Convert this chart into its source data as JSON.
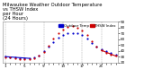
{
  "title": "Milwaukee Weather Outdoor Temperature\nvs THSW Index\nper Hour\n(24 Hours)",
  "background_color": "#ffffff",
  "grid_color": "#aaaaaa",
  "hours": [
    0,
    1,
    2,
    3,
    4,
    5,
    6,
    7,
    8,
    9,
    10,
    11,
    12,
    13,
    14,
    15,
    16,
    17,
    18,
    19,
    20,
    21,
    22,
    23
  ],
  "temp_values": [
    30,
    29,
    28,
    27,
    27,
    27,
    28,
    32,
    39,
    47,
    55,
    62,
    67,
    70,
    71,
    70,
    67,
    61,
    54,
    47,
    42,
    39,
    36,
    34
  ],
  "thsw_values": [
    29,
    28,
    27,
    26,
    26,
    26,
    27,
    31,
    38,
    49,
    61,
    70,
    77,
    81,
    83,
    80,
    75,
    67,
    57,
    48,
    41,
    37,
    33,
    31
  ],
  "ylim": [
    20,
    90
  ],
  "xlim": [
    -0.5,
    23.5
  ],
  "dot_size": 2.5,
  "temp_color": "#0000cc",
  "thsw_color": "#cc0000",
  "legend_label_temp": "Outdoor Temp",
  "legend_label_thsw": "THSW Index",
  "title_fontsize": 3.8,
  "tick_fontsize": 3.0,
  "yticks": [
    20,
    30,
    40,
    50,
    60,
    70,
    80,
    90
  ],
  "xtick_labels": [
    "1",
    "",
    "",
    "",
    "5",
    "",
    "",
    "",
    "9",
    "",
    "",
    "",
    "1",
    "",
    "",
    "",
    "5",
    "",
    "",
    "",
    "9",
    "",
    "",
    "",
    ""
  ],
  "vgrid_positions": [
    0,
    4,
    8,
    12,
    16,
    20
  ],
  "temp_line_x": [
    0,
    5
  ],
  "temp_line_y": [
    30,
    27
  ],
  "thsw_line_x": [
    20,
    23
  ],
  "thsw_line_y": [
    41,
    31
  ]
}
